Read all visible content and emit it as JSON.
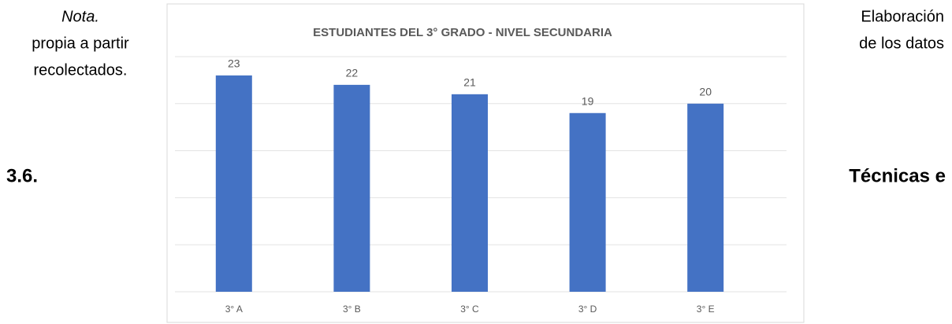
{
  "document": {
    "left_lines": [
      "Nota.",
      "propia a partir",
      "recolectados."
    ],
    "left_heading": "3.6.",
    "right_lines": [
      "Elaboración",
      "de los datos"
    ],
    "right_heading": "Técnicas e"
  },
  "chart_data": {
    "type": "bar",
    "title": "ESTUDIANTES DEL 3° GRADO - NIVEL SECUNDARIA",
    "categories": [
      "3° A",
      "3° B",
      "3° C",
      "3° D",
      "3° E"
    ],
    "values": [
      23,
      22,
      21,
      19,
      20
    ],
    "color": "#4472c4",
    "ylim": [
      0,
      25
    ],
    "yticks": [
      0,
      5,
      10,
      15,
      20,
      25
    ],
    "grid": true
  }
}
